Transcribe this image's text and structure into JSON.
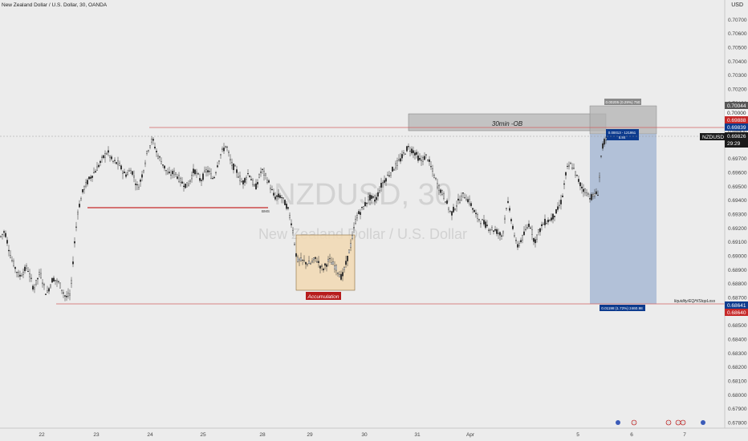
{
  "header": {
    "title": "New Zealand Dollar / U.S. Dollar, 30, OANDA",
    "currency": "USD"
  },
  "watermark": {
    "symbol": "NZDUSD, 30",
    "name": "New Zealand Dollar / U.S. Dollar"
  },
  "colors": {
    "background": "#ececec",
    "candle": "#2a2a2a",
    "ob_zone": "#a3a3a3",
    "accumulation_fill": "#f2d9b3",
    "accumulation_border": "#8a6a3a",
    "accumulation_label_bg": "#b71c1c",
    "position_profit": "#9fb3d1",
    "position_loss": "#b3b3b3",
    "bms_line": "#c62828",
    "level_line": "#d06060",
    "price_tag_current": "#1b1b1b",
    "price_tag_red": "#c62828",
    "price_tag_blue": "#0d3b8e"
  },
  "annotations": {
    "ob_label": "30min -OB",
    "bms_label": "BMS",
    "accumulation_label": "Accumulation",
    "liquidity_label": "liquidity/EQH/StopLoss",
    "target_box": "0.00205 (0.29%) 750",
    "entry_box_line1": "0.00013 - 121951",
    "entry_box_line2": "5.84",
    "stop_box": "0.01198 (1.72%) 2460.98"
  },
  "price_tags": {
    "t1": "0.70044",
    "t2": "0.70000",
    "t3": "0.69888",
    "t4": "0.69839",
    "symbol": "NZDUSD",
    "current": "0.69826",
    "countdown": "29:29",
    "t5": "0.68641",
    "t6": "0.68640"
  },
  "chart_data": {
    "type": "candlestick",
    "title": "New Zealand Dollar / U.S. Dollar, 30, OANDA",
    "y_axis_label": "USD",
    "ylim": [
      0.6776,
      0.7084
    ],
    "y_ticks": [
      "0.70700",
      "0.70600",
      "0.70500",
      "0.70400",
      "0.70300",
      "0.70200",
      "0.70100",
      "0.70000",
      "0.69900",
      "0.69800",
      "0.69700",
      "0.69600",
      "0.69500",
      "0.69400",
      "0.69300",
      "0.69200",
      "0.69100",
      "0.69000",
      "0.68900",
      "0.68800",
      "0.68700",
      "0.68600",
      "0.68500",
      "0.68400",
      "0.68300",
      "0.68200",
      "0.68100",
      "0.68000",
      "0.67900",
      "0.67800"
    ],
    "x_ticks": [
      "22",
      "23",
      "24",
      "25",
      "28",
      "29",
      "30",
      "31",
      "Apr",
      "5",
      "6",
      "7"
    ],
    "price_path": [
      [
        0,
        0.6913
      ],
      [
        6,
        0.6918
      ],
      [
        14,
        0.6898
      ],
      [
        24,
        0.6885
      ],
      [
        34,
        0.6892
      ],
      [
        42,
        0.6876
      ],
      [
        50,
        0.6888
      ],
      [
        58,
        0.6872
      ],
      [
        66,
        0.6884
      ],
      [
        74,
        0.688
      ],
      [
        82,
        0.687
      ],
      [
        88,
        0.6872
      ],
      [
        92,
        0.6904
      ],
      [
        97,
        0.6932
      ],
      [
        104,
        0.6948
      ],
      [
        112,
        0.6956
      ],
      [
        120,
        0.6962
      ],
      [
        128,
        0.697
      ],
      [
        134,
        0.6975
      ],
      [
        140,
        0.6968
      ],
      [
        148,
        0.6966
      ],
      [
        156,
        0.6958
      ],
      [
        164,
        0.6962
      ],
      [
        172,
        0.6948
      ],
      [
        178,
        0.696
      ],
      [
        184,
        0.6976
      ],
      [
        190,
        0.6984
      ],
      [
        196,
        0.6973
      ],
      [
        203,
        0.6966
      ],
      [
        210,
        0.6958
      ],
      [
        218,
        0.696
      ],
      [
        226,
        0.6953
      ],
      [
        234,
        0.695
      ],
      [
        242,
        0.6962
      ],
      [
        250,
        0.6954
      ],
      [
        258,
        0.6962
      ],
      [
        266,
        0.6955
      ],
      [
        274,
        0.6972
      ],
      [
        282,
        0.698
      ],
      [
        288,
        0.6966
      ],
      [
        294,
        0.6962
      ],
      [
        302,
        0.6952
      ],
      [
        310,
        0.696
      ],
      [
        318,
        0.6948
      ],
      [
        326,
        0.6962
      ],
      [
        334,
        0.6954
      ],
      [
        342,
        0.6942
      ],
      [
        350,
        0.6943
      ],
      [
        358,
        0.6935
      ],
      [
        364,
        0.6922
      ],
      [
        370,
        0.6897
      ],
      [
        378,
        0.6896
      ],
      [
        386,
        0.6894
      ],
      [
        394,
        0.6898
      ],
      [
        402,
        0.689
      ],
      [
        410,
        0.6897
      ],
      [
        418,
        0.6892
      ],
      [
        426,
        0.6884
      ],
      [
        432,
        0.6896
      ],
      [
        438,
        0.691
      ],
      [
        444,
        0.6928
      ],
      [
        452,
        0.6934
      ],
      [
        460,
        0.6942
      ],
      [
        468,
        0.694
      ],
      [
        476,
        0.6952
      ],
      [
        484,
        0.6958
      ],
      [
        492,
        0.6964
      ],
      [
        500,
        0.697
      ],
      [
        508,
        0.6978
      ],
      [
        516,
        0.6975
      ],
      [
        524,
        0.6968
      ],
      [
        532,
        0.6972
      ],
      [
        538,
        0.6962
      ],
      [
        546,
        0.695
      ],
      [
        554,
        0.6942
      ],
      [
        562,
        0.693
      ],
      [
        570,
        0.6938
      ],
      [
        578,
        0.6944
      ],
      [
        586,
        0.6938
      ],
      [
        594,
        0.6928
      ],
      [
        602,
        0.6924
      ],
      [
        610,
        0.692
      ],
      [
        618,
        0.6918
      ],
      [
        626,
        0.6914
      ],
      [
        632,
        0.694
      ],
      [
        638,
        0.6924
      ],
      [
        644,
        0.6906
      ],
      [
        652,
        0.6914
      ],
      [
        660,
        0.6924
      ],
      [
        666,
        0.691
      ],
      [
        672,
        0.6918
      ],
      [
        678,
        0.6924
      ],
      [
        686,
        0.6926
      ],
      [
        694,
        0.6932
      ],
      [
        700,
        0.694
      ],
      [
        706,
        0.6962
      ],
      [
        712,
        0.6966
      ],
      [
        718,
        0.6958
      ],
      [
        724,
        0.695
      ],
      [
        730,
        0.6946
      ],
      [
        736,
        0.6942
      ],
      [
        742,
        0.6944
      ],
      [
        746,
        0.6946
      ],
      [
        748,
        0.6968
      ],
      [
        752,
        0.6982
      ],
      [
        756,
        0.6983
      ]
    ],
    "levels": {
      "high_line": 0.69888,
      "current": 0.69826,
      "low_line": 0.6864,
      "bms": 0.6934,
      "ob_top": 0.69982,
      "ob_bottom": 0.6986,
      "position_top": 0.70044,
      "position_entry": 0.69839,
      "position_stop": 0.68641,
      "accumulation_top": 0.69117,
      "accumulation_bottom": 0.6877
    },
    "grid": false
  }
}
